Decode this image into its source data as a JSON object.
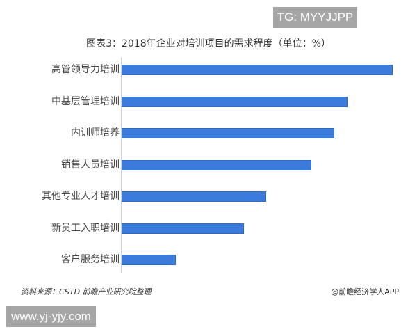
{
  "watermark_top": "TG: MYYJJPP",
  "watermark_bottom": "www.yj-yjy.com",
  "footer": {
    "source": "资料来源：CSTD 前瞻产业研究院整理",
    "credit": "@前瞻经济学人APP"
  },
  "chart_data": {
    "type": "bar",
    "orientation": "horizontal",
    "title": "图表3：2018年企业对培训项目的需求程度（单位：%）",
    "xlabel": "",
    "ylabel": "",
    "unit": "%",
    "grid": false,
    "legend": null,
    "categories": [
      "高管领导力培训",
      "中基层管理培训",
      "内训师培养",
      "销售人员培训",
      "其他专业人才培训",
      "新员工入职培训",
      "客户服务培训"
    ],
    "values": [
      60,
      50,
      47,
      42,
      32,
      27,
      12
    ],
    "bar_color": "#3a7bdc",
    "note": "values estimated from relative bar lengths; no axis ticks or data labels shown"
  }
}
